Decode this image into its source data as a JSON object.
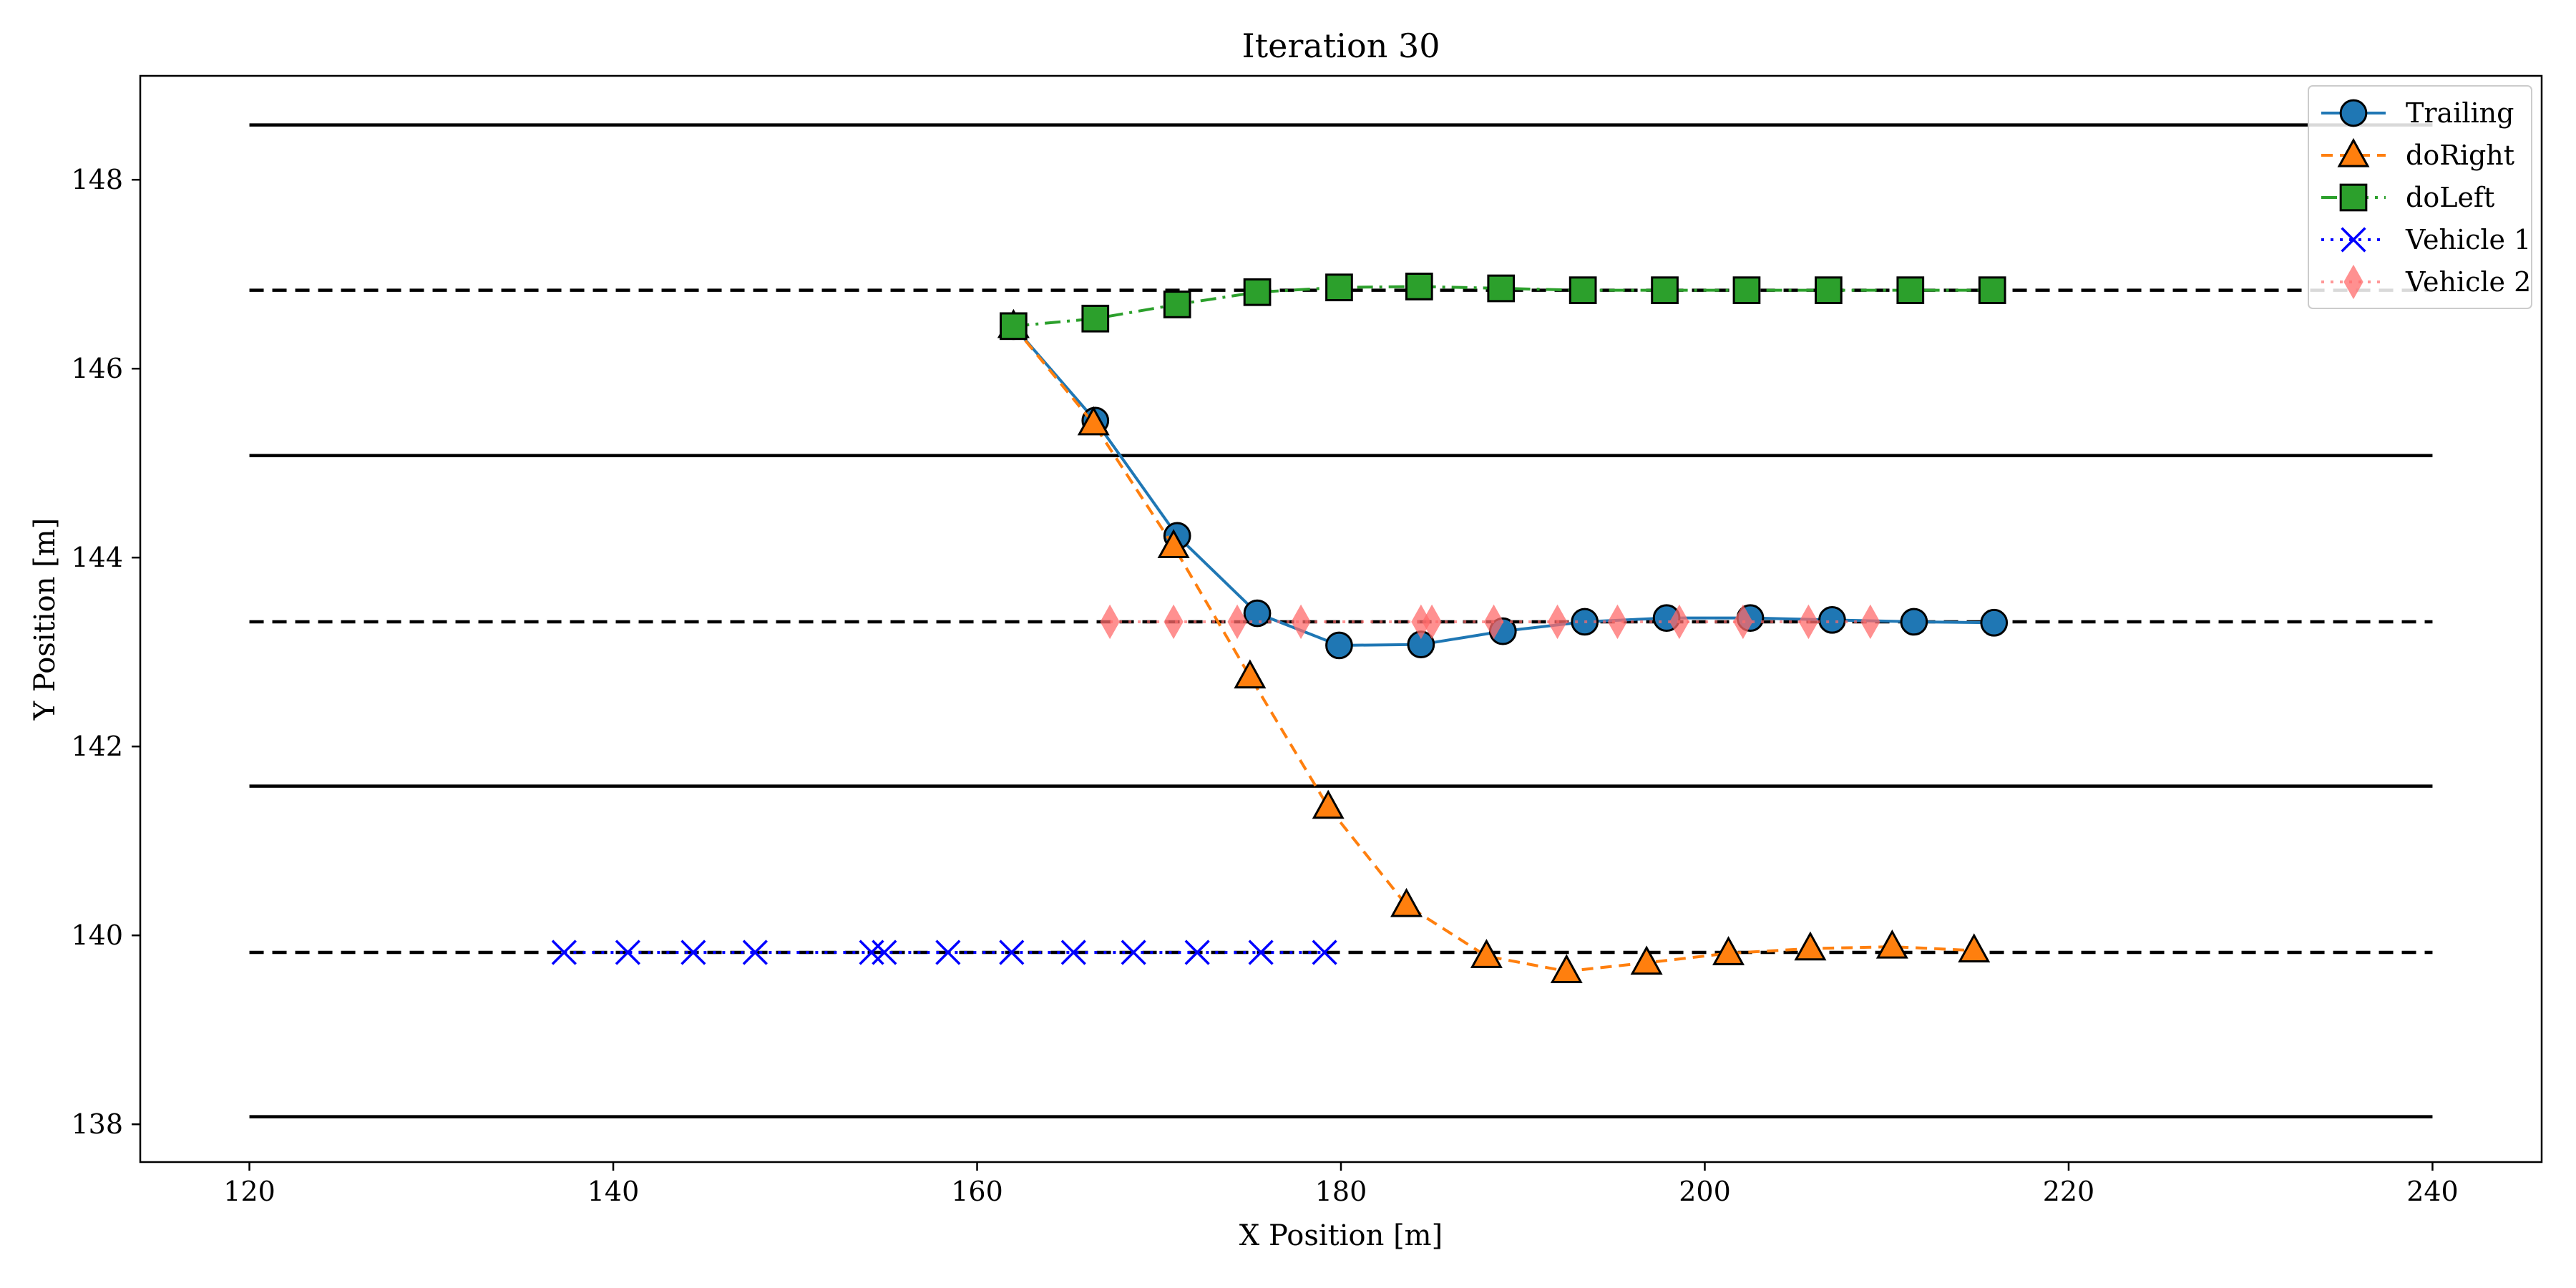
{
  "chart_data": {
    "type": "line",
    "title": "Iteration 30",
    "xlabel": "X Position [m]",
    "ylabel": "Y Position [m]",
    "xlim": [
      114,
      246
    ],
    "ylim": [
      137.6,
      149.1
    ],
    "xticks": [
      120,
      140,
      160,
      180,
      200,
      220,
      240
    ],
    "yticks": [
      138,
      140,
      142,
      144,
      146,
      148
    ],
    "grid": false,
    "legend_position": "top-right",
    "lane_lines": [
      {
        "y": 148.58,
        "style": "solid"
      },
      {
        "y": 146.83,
        "style": "dashed"
      },
      {
        "y": 145.08,
        "style": "solid"
      },
      {
        "y": 143.32,
        "style": "dashed"
      },
      {
        "y": 141.58,
        "style": "solid"
      },
      {
        "y": 139.82,
        "style": "dashed"
      },
      {
        "y": 138.08,
        "style": "solid"
      }
    ],
    "lane_x_range": [
      120,
      240
    ],
    "series": [
      {
        "name": "Trailing",
        "color": "#1f77b4",
        "line": "solid",
        "marker": "circle",
        "x": [
          162.0,
          166.5,
          171.0,
          175.4,
          179.9,
          184.4,
          188.9,
          193.4,
          197.9,
          202.5,
          207.0,
          211.5,
          215.9
        ],
        "y": [
          146.45,
          145.45,
          144.23,
          143.41,
          143.07,
          143.08,
          143.22,
          143.32,
          143.36,
          143.36,
          143.34,
          143.32,
          143.31
        ]
      },
      {
        "name": "doRight",
        "color": "#ff7f0e",
        "line": "dashed",
        "marker": "triangle",
        "x": [
          162.0,
          166.4,
          170.8,
          175.0,
          179.3,
          183.6,
          188.0,
          192.4,
          196.8,
          201.3,
          205.8,
          210.3,
          214.8
        ],
        "y": [
          146.45,
          145.42,
          144.12,
          142.74,
          141.36,
          140.32,
          139.78,
          139.62,
          139.71,
          139.81,
          139.86,
          139.88,
          139.84
        ]
      },
      {
        "name": "doLeft",
        "color": "#2ca02c",
        "line": "dashdot",
        "marker": "square",
        "x": [
          162.0,
          166.5,
          171.0,
          175.4,
          179.9,
          184.3,
          188.8,
          193.3,
          197.8,
          202.3,
          206.8,
          211.3,
          215.8
        ],
        "y": [
          146.45,
          146.53,
          146.68,
          146.81,
          146.86,
          146.87,
          146.85,
          146.83,
          146.83,
          146.83,
          146.83,
          146.83,
          146.83
        ]
      },
      {
        "name": "Vehicle 1",
        "color": "#0000ff",
        "line": "dotted",
        "marker": "x",
        "x": [
          137.3,
          140.8,
          144.4,
          147.8,
          154.2,
          154.9,
          158.4,
          161.9,
          165.3,
          168.6,
          172.1,
          175.6,
          179.1
        ],
        "y": [
          139.82,
          139.82,
          139.82,
          139.82,
          139.82,
          139.82,
          139.82,
          139.82,
          139.82,
          139.82,
          139.82,
          139.82,
          139.82
        ]
      },
      {
        "name": "Vehicle 2",
        "color": "#ff6b6b",
        "line": "dotted",
        "marker": "diamond",
        "x": [
          167.3,
          170.8,
          174.3,
          177.8,
          184.4,
          185.0,
          188.4,
          191.9,
          195.2,
          198.6,
          202.1,
          205.7,
          209.1
        ],
        "y": [
          143.32,
          143.32,
          143.32,
          143.32,
          143.32,
          143.32,
          143.32,
          143.32,
          143.32,
          143.32,
          143.32,
          143.32,
          143.32
        ]
      }
    ]
  }
}
